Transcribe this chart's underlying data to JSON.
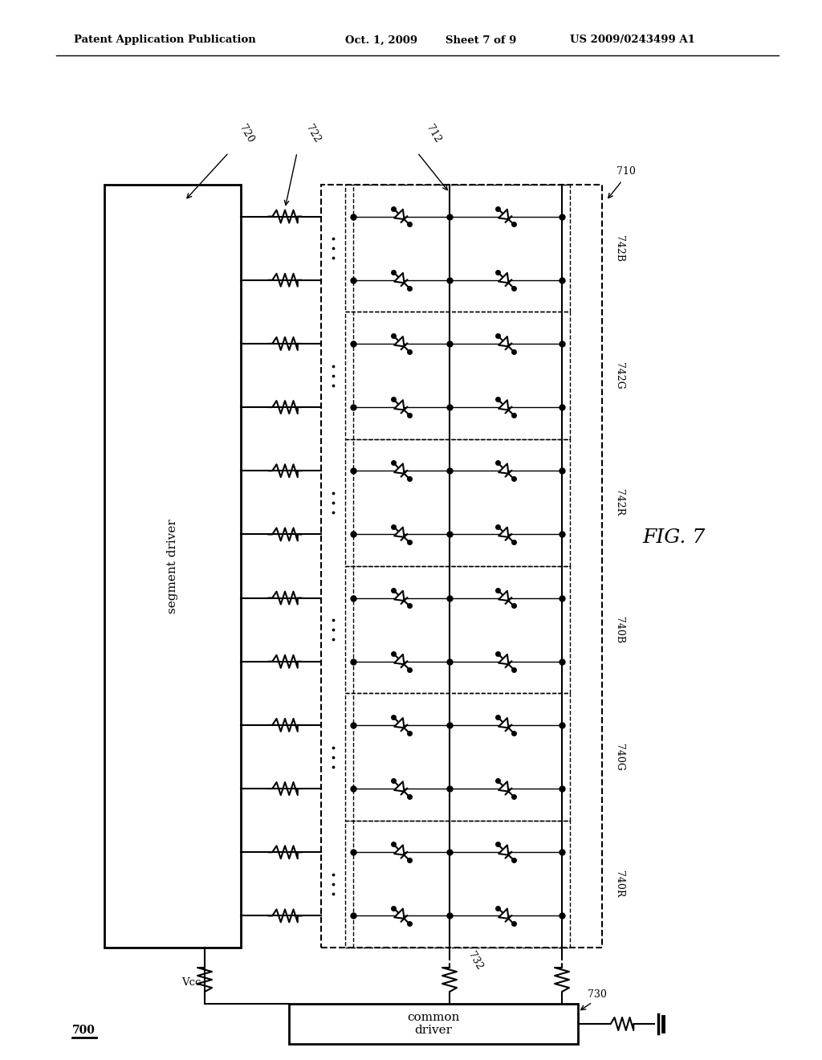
{
  "bg_color": "#ffffff",
  "line_color": "#000000",
  "header_left": "Patent Application Publication",
  "header_date": "Oct. 1, 2009",
  "header_sheet": "Sheet 7 of 9",
  "header_patent": "US 2009/0243499 A1",
  "fig_label": "FIG. 7",
  "segment_driver_label": "segment driver",
  "common_driver_label": "common\ndriver",
  "vcc_label": "Vcc",
  "main_label": "700",
  "ref_720": "720",
  "ref_722": "722",
  "ref_712": "712",
  "ref_710": "710",
  "ref_732": "732",
  "ref_730": "730",
  "group_names": [
    "742B",
    "742G",
    "742R",
    "740B",
    "740G",
    "740R"
  ],
  "num_rows": 12,
  "num_groups": 6
}
